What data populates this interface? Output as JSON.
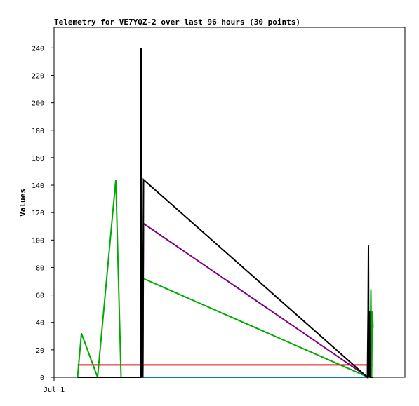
{
  "chart_data": {
    "type": "line",
    "title": "Telemetry for VE7YQZ-2 over last 96 hours (30 points)",
    "ylabel": "Values",
    "xlabel": "",
    "ylim": [
      0,
      255
    ],
    "yticks": [
      0,
      20,
      40,
      60,
      80,
      100,
      120,
      140,
      160,
      180,
      200,
      220,
      240
    ],
    "x_tick_label": "Jul 1",
    "x_domain": [
      0,
      100
    ],
    "x_tick_at": 0,
    "grid": false,
    "legend": "none",
    "series": [
      {
        "color": "#1a6fc4",
        "x": [
          6.7,
          24.9,
          25.1,
          89.5,
          89.8,
          90.1,
          90.4,
          90.9
        ],
        "y": [
          0,
          0,
          0,
          0,
          0,
          0,
          0,
          0
        ]
      },
      {
        "color": "#e01010",
        "x": [
          6.7,
          90.9
        ],
        "y": [
          9,
          9
        ]
      },
      {
        "color": "#800080",
        "x": [
          6.7,
          24.7,
          24.9,
          25.0,
          25.1,
          25.3,
          25.5,
          89.5,
          89.8,
          90.1,
          90.4,
          90.9
        ],
        "y": [
          0,
          0,
          0,
          0,
          0,
          0,
          112,
          0,
          0,
          0,
          0,
          0
        ]
      },
      {
        "color": "#00aa00",
        "x": [
          6.7,
          7.8,
          12.4,
          17.6,
          19.1,
          24.7,
          24.9,
          25.0,
          25.2,
          25.3,
          25.4,
          89.6,
          89.8,
          90.0,
          90.3,
          90.5,
          90.7,
          90.9
        ],
        "y": [
          0,
          32,
          0,
          144,
          0,
          0,
          120,
          0,
          96,
          0,
          72,
          0,
          48,
          0,
          64,
          0,
          48,
          36
        ]
      },
      {
        "color": "#000000",
        "x": [
          6.7,
          24.7,
          24.8,
          24.9,
          25.0,
          25.1,
          25.2,
          25.3,
          25.5,
          89.3,
          89.5,
          89.6,
          89.7,
          89.9,
          90.1,
          90.4,
          90.9
        ],
        "y": [
          0,
          0,
          240,
          0,
          128,
          0,
          96,
          0,
          144,
          0,
          48,
          96,
          0,
          48,
          0,
          0,
          0
        ]
      }
    ]
  }
}
